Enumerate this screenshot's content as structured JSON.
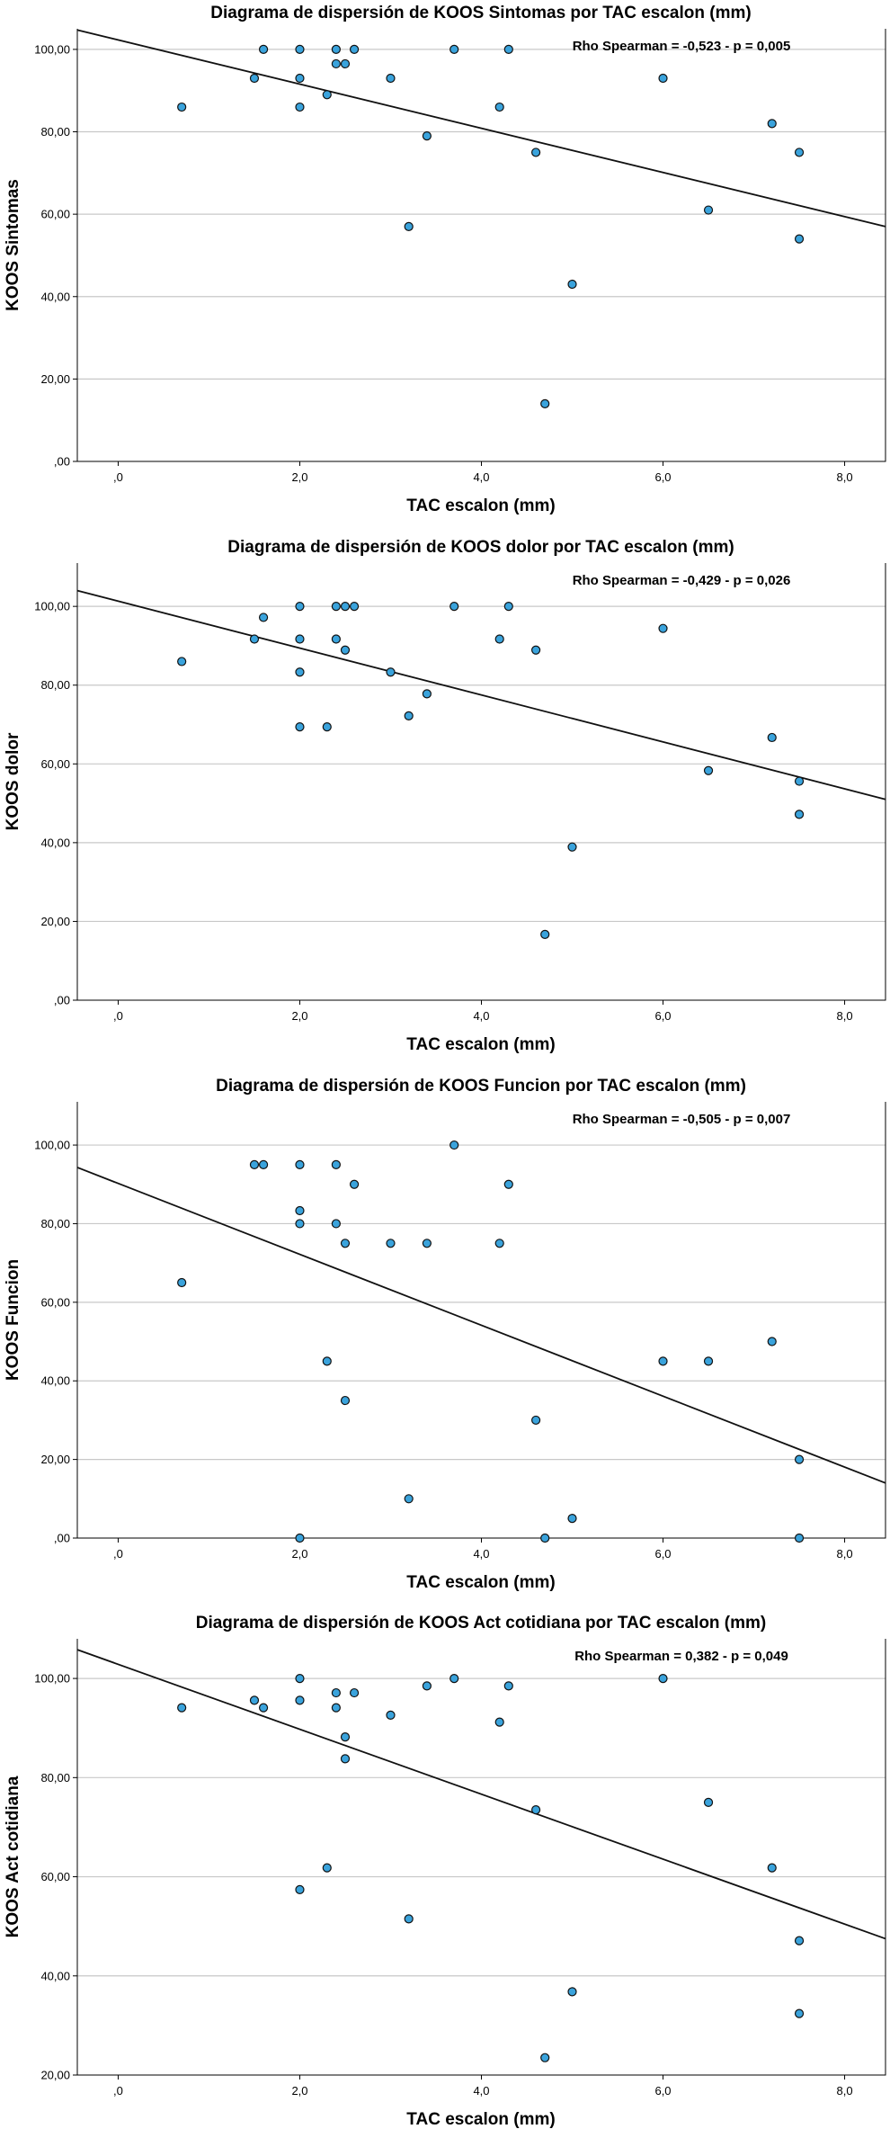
{
  "chart_data": [
    {
      "type": "scatter",
      "title": "Diagrama de dispersión de KOOS Sintomas por TAC escalon (mm)",
      "xlabel": "TAC escalon (mm)",
      "ylabel": "KOOS Sintomas",
      "annotation": "Rho Spearman = -0,523 - p = 0,005",
      "xlim": [
        -0.45,
        8.45
      ],
      "ylim": [
        0,
        105
      ],
      "xticks": [
        0,
        2,
        4,
        6,
        8
      ],
      "xtick_labels": [
        ",0",
        "2,0",
        "4,0",
        "6,0",
        "8,0"
      ],
      "yticks": [
        0,
        20,
        40,
        60,
        80,
        100
      ],
      "ytick_labels": [
        ",00",
        "20,00",
        "40,00",
        "60,00",
        "80,00",
        "100,00"
      ],
      "grid": true,
      "fit_line": {
        "x": [
          -0.45,
          8.45
        ],
        "y": [
          104.7,
          57.0
        ]
      },
      "points": [
        {
          "x": 0.7,
          "y": 86
        },
        {
          "x": 1.5,
          "y": 93
        },
        {
          "x": 1.6,
          "y": 100
        },
        {
          "x": 2.0,
          "y": 100
        },
        {
          "x": 2.0,
          "y": 93
        },
        {
          "x": 2.0,
          "y": 86
        },
        {
          "x": 2.3,
          "y": 89
        },
        {
          "x": 2.4,
          "y": 100
        },
        {
          "x": 2.4,
          "y": 96.5
        },
        {
          "x": 2.5,
          "y": 96.5
        },
        {
          "x": 2.6,
          "y": 100
        },
        {
          "x": 3.0,
          "y": 93
        },
        {
          "x": 3.2,
          "y": 57
        },
        {
          "x": 3.4,
          "y": 79
        },
        {
          "x": 3.7,
          "y": 100
        },
        {
          "x": 4.2,
          "y": 86
        },
        {
          "x": 4.3,
          "y": 100
        },
        {
          "x": 4.6,
          "y": 75
        },
        {
          "x": 4.7,
          "y": 14
        },
        {
          "x": 5.0,
          "y": 43
        },
        {
          "x": 6.0,
          "y": 93
        },
        {
          "x": 6.5,
          "y": 61
        },
        {
          "x": 7.2,
          "y": 82
        },
        {
          "x": 7.5,
          "y": 75
        },
        {
          "x": 7.5,
          "y": 54
        }
      ]
    },
    {
      "type": "scatter",
      "title": "Diagrama de dispersión de KOOS dolor por TAC escalon (mm)",
      "xlabel": "TAC escalon (mm)",
      "ylabel": "KOOS dolor",
      "annotation": "Rho Spearman = -0,429 - p = 0,026",
      "xlim": [
        -0.45,
        8.45
      ],
      "ylim": [
        0,
        111
      ],
      "xticks": [
        0,
        2,
        4,
        6,
        8
      ],
      "xtick_labels": [
        ",0",
        "2,0",
        "4,0",
        "6,0",
        "8,0"
      ],
      "yticks": [
        0,
        20,
        40,
        60,
        80,
        100
      ],
      "ytick_labels": [
        ",00",
        "20,00",
        "40,00",
        "60,00",
        "80,00",
        "100,00"
      ],
      "grid": true,
      "fit_line": {
        "x": [
          -0.45,
          8.45
        ],
        "y": [
          104.0,
          51.0
        ]
      },
      "points": [
        {
          "x": 0.7,
          "y": 86
        },
        {
          "x": 1.5,
          "y": 91.7
        },
        {
          "x": 1.6,
          "y": 97.2
        },
        {
          "x": 2.0,
          "y": 100
        },
        {
          "x": 2.0,
          "y": 91.7
        },
        {
          "x": 2.0,
          "y": 83.3
        },
        {
          "x": 2.0,
          "y": 69.4
        },
        {
          "x": 2.3,
          "y": 69.4
        },
        {
          "x": 2.4,
          "y": 100
        },
        {
          "x": 2.4,
          "y": 91.7
        },
        {
          "x": 2.5,
          "y": 100
        },
        {
          "x": 2.5,
          "y": 88.9
        },
        {
          "x": 2.6,
          "y": 100
        },
        {
          "x": 3.0,
          "y": 83.3
        },
        {
          "x": 3.2,
          "y": 72.2
        },
        {
          "x": 3.4,
          "y": 77.8
        },
        {
          "x": 3.7,
          "y": 100
        },
        {
          "x": 4.2,
          "y": 91.7
        },
        {
          "x": 4.3,
          "y": 100
        },
        {
          "x": 4.6,
          "y": 88.9
        },
        {
          "x": 4.7,
          "y": 16.7
        },
        {
          "x": 5.0,
          "y": 38.9
        },
        {
          "x": 6.0,
          "y": 94.4
        },
        {
          "x": 6.5,
          "y": 58.3
        },
        {
          "x": 7.2,
          "y": 66.7
        },
        {
          "x": 7.5,
          "y": 55.6
        },
        {
          "x": 7.5,
          "y": 47.2
        }
      ]
    },
    {
      "type": "scatter",
      "title": "Diagrama de dispersión de KOOS Funcion por TAC escalon (mm)",
      "xlabel": "TAC escalon (mm)",
      "ylabel": "KOOS Funcion",
      "annotation": "Rho Spearman = -0,505 - p = 0,007",
      "xlim": [
        -0.45,
        8.45
      ],
      "ylim": [
        0,
        111
      ],
      "xticks": [
        0,
        2,
        4,
        6,
        8
      ],
      "xtick_labels": [
        ",0",
        "2,0",
        "4,0",
        "6,0",
        "8,0"
      ],
      "yticks": [
        0,
        20,
        40,
        60,
        80,
        100
      ],
      "ytick_labels": [
        ",00",
        "20,00",
        "40,00",
        "60,00",
        "80,00",
        "100,00"
      ],
      "grid": true,
      "fit_line": {
        "x": [
          -0.45,
          8.45
        ],
        "y": [
          94.3,
          14.0
        ]
      },
      "points": [
        {
          "x": 0.7,
          "y": 65
        },
        {
          "x": 1.5,
          "y": 95
        },
        {
          "x": 1.6,
          "y": 95
        },
        {
          "x": 2.0,
          "y": 95
        },
        {
          "x": 2.0,
          "y": 83.3
        },
        {
          "x": 2.0,
          "y": 80
        },
        {
          "x": 2.0,
          "y": 0
        },
        {
          "x": 2.3,
          "y": 45
        },
        {
          "x": 2.4,
          "y": 95
        },
        {
          "x": 2.4,
          "y": 80
        },
        {
          "x": 2.5,
          "y": 75
        },
        {
          "x": 2.5,
          "y": 35
        },
        {
          "x": 2.6,
          "y": 90
        },
        {
          "x": 3.0,
          "y": 75
        },
        {
          "x": 3.2,
          "y": 10
        },
        {
          "x": 3.4,
          "y": 75
        },
        {
          "x": 3.7,
          "y": 100
        },
        {
          "x": 4.2,
          "y": 75
        },
        {
          "x": 4.3,
          "y": 90
        },
        {
          "x": 4.6,
          "y": 30
        },
        {
          "x": 4.7,
          "y": 0
        },
        {
          "x": 5.0,
          "y": 5
        },
        {
          "x": 6.0,
          "y": 45
        },
        {
          "x": 6.5,
          "y": 45
        },
        {
          "x": 7.2,
          "y": 50
        },
        {
          "x": 7.5,
          "y": 20
        },
        {
          "x": 7.5,
          "y": 0
        }
      ]
    },
    {
      "type": "scatter",
      "title": "Diagrama de dispersión de KOOS Act cotidiana por TAC escalon (mm)",
      "xlabel": "TAC escalon (mm)",
      "ylabel": "KOOS Act cotidiana",
      "annotation": "Rho Spearman = 0,382 - p = 0,049",
      "xlim": [
        -0.45,
        8.45
      ],
      "ylim": [
        20,
        108
      ],
      "xticks": [
        0,
        2,
        4,
        6,
        8
      ],
      "xtick_labels": [
        ",0",
        "2,0",
        "4,0",
        "6,0",
        "8,0"
      ],
      "yticks": [
        20,
        40,
        60,
        80,
        100
      ],
      "ytick_labels": [
        "20,00",
        "40,00",
        "60,00",
        "80,00",
        "100,00"
      ],
      "grid": true,
      "fit_line": {
        "x": [
          -0.45,
          8.45
        ],
        "y": [
          105.8,
          47.5
        ]
      },
      "points": [
        {
          "x": 0.7,
          "y": 94.1
        },
        {
          "x": 1.5,
          "y": 95.6
        },
        {
          "x": 1.6,
          "y": 94.1
        },
        {
          "x": 2.0,
          "y": 100
        },
        {
          "x": 2.0,
          "y": 95.6
        },
        {
          "x": 2.0,
          "y": 57.4
        },
        {
          "x": 2.3,
          "y": 61.8
        },
        {
          "x": 2.4,
          "y": 97.1
        },
        {
          "x": 2.4,
          "y": 94.1
        },
        {
          "x": 2.5,
          "y": 88.2
        },
        {
          "x": 2.5,
          "y": 83.8
        },
        {
          "x": 2.6,
          "y": 97.1
        },
        {
          "x": 3.0,
          "y": 92.6
        },
        {
          "x": 3.2,
          "y": 51.5
        },
        {
          "x": 3.4,
          "y": 98.5
        },
        {
          "x": 3.7,
          "y": 100
        },
        {
          "x": 4.2,
          "y": 91.2
        },
        {
          "x": 4.3,
          "y": 98.5
        },
        {
          "x": 4.6,
          "y": 73.5
        },
        {
          "x": 4.7,
          "y": 23.5
        },
        {
          "x": 5.0,
          "y": 36.8
        },
        {
          "x": 6.0,
          "y": 100
        },
        {
          "x": 6.5,
          "y": 75
        },
        {
          "x": 7.2,
          "y": 61.8
        },
        {
          "x": 7.5,
          "y": 47.1
        },
        {
          "x": 7.5,
          "y": 32.4
        }
      ]
    }
  ]
}
